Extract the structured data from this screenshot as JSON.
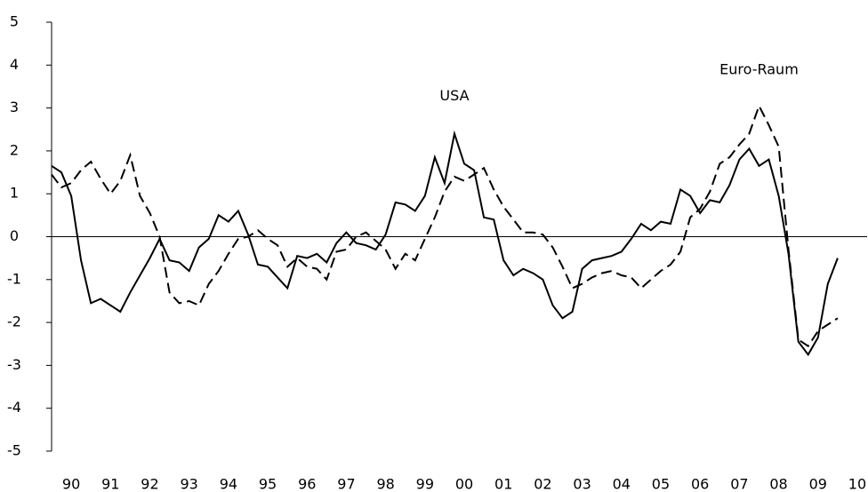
{
  "chart_data": {
    "type": "line",
    "x": [
      1990,
      1990.25,
      1990.5,
      1990.75,
      1991,
      1991.25,
      1991.5,
      1991.75,
      1992,
      1992.25,
      1992.5,
      1992.75,
      1993,
      1993.25,
      1993.5,
      1993.75,
      1994,
      1994.25,
      1994.5,
      1994.75,
      1995,
      1995.25,
      1995.5,
      1995.75,
      1996,
      1996.25,
      1996.5,
      1996.75,
      1997,
      1997.25,
      1997.5,
      1997.75,
      1998,
      1998.25,
      1998.5,
      1998.75,
      1999,
      1999.25,
      1999.5,
      1999.75,
      2000,
      2000.25,
      2000.5,
      2000.75,
      2001,
      2001.25,
      2001.5,
      2001.75,
      2002,
      2002.25,
      2002.5,
      2002.75,
      2003,
      2003.25,
      2003.5,
      2003.75,
      2004,
      2004.25,
      2004.5,
      2004.75,
      2005,
      2005.25,
      2005.5,
      2005.75,
      2006,
      2006.25,
      2006.5,
      2006.75,
      2007,
      2007.25,
      2007.5,
      2007.75,
      2008,
      2008.25,
      2008.5,
      2008.75,
      2009,
      2009.25,
      2009.5,
      2009.75,
      2010
    ],
    "series": [
      {
        "name": "USA",
        "color": "#000000",
        "dash": false,
        "values": [
          1.65,
          1.5,
          0.95,
          -0.55,
          -1.55,
          -1.45,
          -1.6,
          -1.75,
          -1.3,
          -0.9,
          -0.5,
          -0.05,
          -0.55,
          -0.6,
          -0.8,
          -0.25,
          -0.05,
          0.5,
          0.35,
          0.6,
          0.05,
          -0.65,
          -0.7,
          -0.95,
          -1.2,
          -0.45,
          -0.5,
          -0.4,
          -0.6,
          -0.15,
          0.1,
          -0.15,
          -0.2,
          -0.3,
          0.05,
          0.8,
          0.75,
          0.6,
          0.95,
          1.85,
          1.25,
          2.4,
          1.7,
          1.55,
          0.45,
          0.4,
          -0.55,
          -0.9,
          -0.75,
          -0.85,
          -1.0,
          -1.6,
          -1.9,
          -1.75,
          -0.75,
          -0.55,
          -0.5,
          -0.45,
          -0.35,
          -0.05,
          0.3,
          0.15,
          0.35,
          0.3,
          1.1,
          0.95,
          0.55,
          0.85,
          0.8,
          1.2,
          1.8,
          2.05,
          1.65,
          1.8,
          0.95,
          -0.4,
          -2.45,
          -2.75,
          -2.35,
          -1.1,
          -0.5
        ]
      },
      {
        "name": "Euro-Raum",
        "color": "#000000",
        "dash": true,
        "values": [
          1.45,
          1.15,
          1.25,
          1.55,
          1.75,
          1.35,
          1.0,
          1.3,
          1.9,
          0.95,
          0.55,
          0.0,
          -1.3,
          -1.55,
          -1.5,
          -1.6,
          -1.1,
          -0.8,
          -0.4,
          -0.05,
          0.0,
          0.15,
          -0.05,
          -0.2,
          -0.7,
          -0.5,
          -0.7,
          -0.75,
          -1.0,
          -0.35,
          -0.3,
          0.0,
          0.1,
          -0.1,
          -0.3,
          -0.75,
          -0.4,
          -0.55,
          -0.05,
          0.45,
          1.05,
          1.4,
          1.3,
          1.45,
          1.6,
          1.1,
          0.7,
          0.4,
          0.1,
          0.1,
          0.05,
          -0.25,
          -0.7,
          -1.2,
          -1.1,
          -0.95,
          -0.85,
          -0.8,
          -0.9,
          -0.95,
          -1.2,
          -1.0,
          -0.8,
          -0.65,
          -0.35,
          0.45,
          0.65,
          1.05,
          1.7,
          1.85,
          2.15,
          2.4,
          3.05,
          2.6,
          2.1,
          -0.3,
          -2.4,
          -2.55,
          -2.2,
          -2.05,
          -1.9
        ]
      }
    ],
    "xlim": [
      1990,
      2010.75
    ],
    "xticks": [
      {
        "value": 1990.5,
        "label": "90"
      },
      {
        "value": 1991.5,
        "label": "91"
      },
      {
        "value": 1992.5,
        "label": "92"
      },
      {
        "value": 1993.5,
        "label": "93"
      },
      {
        "value": 1994.5,
        "label": "94"
      },
      {
        "value": 1995.5,
        "label": "95"
      },
      {
        "value": 1996.5,
        "label": "96"
      },
      {
        "value": 1997.5,
        "label": "97"
      },
      {
        "value": 1998.5,
        "label": "98"
      },
      {
        "value": 1999.5,
        "label": "99"
      },
      {
        "value": 2000.5,
        "label": "00"
      },
      {
        "value": 2001.5,
        "label": "01"
      },
      {
        "value": 2002.5,
        "label": "02"
      },
      {
        "value": 2003.5,
        "label": "03"
      },
      {
        "value": 2004.5,
        "label": "04"
      },
      {
        "value": 2005.5,
        "label": "05"
      },
      {
        "value": 2006.5,
        "label": "06"
      },
      {
        "value": 2007.5,
        "label": "07"
      },
      {
        "value": 2008.5,
        "label": "08"
      },
      {
        "value": 2009.5,
        "label": "09"
      },
      {
        "value": 2010.5,
        "label": "10"
      }
    ],
    "ylim": [
      -5,
      5
    ],
    "yticks": [
      -5,
      -4,
      -3,
      -2,
      -1,
      0,
      1,
      2,
      3,
      4,
      5
    ],
    "grid": false
  }
}
